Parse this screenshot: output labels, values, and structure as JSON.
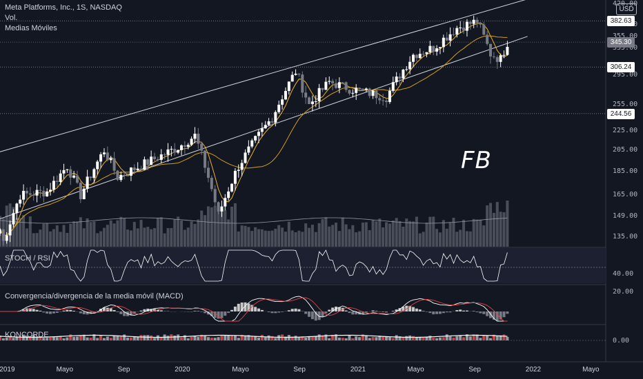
{
  "header": {
    "symbol_line": "Meta Platforms, Inc., 1S, NASDAQ",
    "volume_label": "Vol.",
    "ma_label": "Medias Móviles",
    "currency": "USD"
  },
  "annotation": {
    "ticker": "FB"
  },
  "panes": {
    "stoch_rsi": {
      "title": "STOCH / RSI",
      "tick": "40.00"
    },
    "macd": {
      "title": "Convergencia/divergencia de la media móvil (MACD)",
      "tick": "20.00"
    },
    "koncorde": {
      "title": "KONCORDE",
      "tick": "0.00"
    }
  },
  "price_axis": {
    "ticks": [
      "420.00",
      "375.00",
      "355.00",
      "335.00",
      "295.00",
      "255.00",
      "225.00",
      "205.00",
      "185.00",
      "165.00",
      "149.00",
      "135.00"
    ],
    "tags": [
      "382.63",
      "306.24",
      "244.56"
    ],
    "current_price_tag": "345.30"
  },
  "time_axis": {
    "labels": [
      "2019",
      "Mayo",
      "Sep",
      "2020",
      "Mayo",
      "Sep",
      "2021",
      "Mayo",
      "Sep",
      "2022",
      "Mayo"
    ]
  },
  "colors": {
    "background": "#131722",
    "up_candle": "#ffffff",
    "down_candle": "#787b86",
    "ma_fast": "#f0b429",
    "ma_slow": "#d4a017",
    "channel": "#d1d4dc",
    "macd_line": "#ffffff",
    "signal_line": "#e04545",
    "hist_pos": "#c8c8c8",
    "hist_neg": "#787b86"
  },
  "chart_data": {
    "type": "candlestick",
    "title": "Meta Platforms, Inc., 1S, NASDAQ",
    "interval": "1W",
    "y_scale": "log",
    "ylim": [
      130,
      425
    ],
    "x_range": [
      "2018-12-17",
      "2022-06-01"
    ],
    "key_levels": [
      382.63,
      306.24,
      244.56
    ],
    "last_price": 345.3,
    "price_waypoints": [
      [
        "2018-12-17",
        140
      ],
      [
        "2018-12-24",
        132
      ],
      [
        "2019-01-28",
        165
      ],
      [
        "2019-03-25",
        168
      ],
      [
        "2019-05-06",
        190
      ],
      [
        "2019-06-03",
        165
      ],
      [
        "2019-07-22",
        205
      ],
      [
        "2019-08-19",
        180
      ],
      [
        "2019-10-28",
        195
      ],
      [
        "2019-12-23",
        208
      ],
      [
        "2020-01-27",
        220
      ],
      [
        "2020-03-16",
        150
      ],
      [
        "2020-04-27",
        190
      ],
      [
        "2020-07-06",
        240
      ],
      [
        "2020-08-24",
        300
      ],
      [
        "2020-09-21",
        255
      ],
      [
        "2020-11-02",
        285
      ],
      [
        "2020-12-14",
        276
      ],
      [
        "2021-01-25",
        270
      ],
      [
        "2021-03-01",
        265
      ],
      [
        "2021-04-26",
        325
      ],
      [
        "2021-06-07",
        336
      ],
      [
        "2021-07-26",
        370
      ],
      [
        "2021-09-06",
        382
      ],
      [
        "2021-10-04",
        326
      ],
      [
        "2021-10-25",
        318
      ],
      [
        "2021-11-08",
        345
      ]
    ],
    "channel": {
      "upper": [
        [
          "2018-10-15",
          195
        ],
        [
          "2021-12-20",
          425
        ]
      ],
      "lower": [
        [
          "2018-10-15",
          140
        ],
        [
          "2021-12-20",
          355
        ]
      ]
    },
    "moving_averages": [
      "fast (orange)",
      "slow (gold)"
    ],
    "indicators": [
      "STOCH / RSI",
      "MACD",
      "KONCORDE"
    ]
  }
}
